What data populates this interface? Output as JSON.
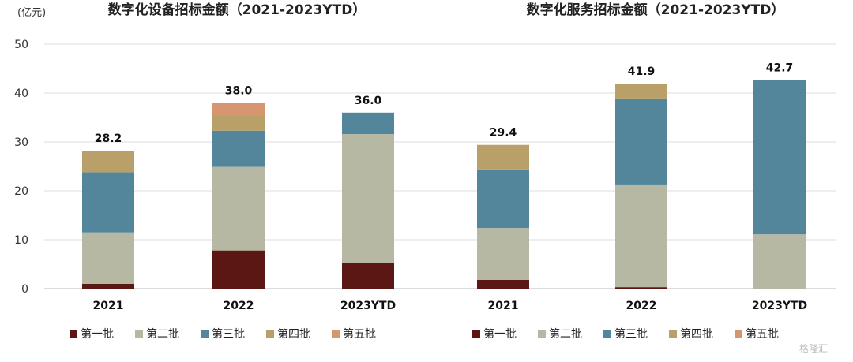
{
  "unit_label": "(亿元)",
  "watermark": "格隆汇",
  "colors": {
    "第一批": "#5a1713",
    "第二批": "#b7b8a4",
    "第三批": "#53869a",
    "第四批": "#b9a068",
    "第五批": "#d59670"
  },
  "chart_data": [
    {
      "type": "bar",
      "stacked": true,
      "title": "数字化设备招标金额（2021-2023YTD）",
      "ylim": [
        0,
        50
      ],
      "yticks": [
        0,
        10,
        20,
        30,
        40,
        50
      ],
      "categories": [
        "2021",
        "2022",
        "2023YTD"
      ],
      "totals": [
        "28.2",
        "38.0",
        "36.0"
      ],
      "series": [
        {
          "name": "第一批",
          "values": [
            1.0,
            7.8,
            5.2
          ]
        },
        {
          "name": "第二批",
          "values": [
            10.5,
            17.1,
            26.4
          ]
        },
        {
          "name": "第三批",
          "values": [
            12.3,
            7.4,
            4.4
          ]
        },
        {
          "name": "第四批",
          "values": [
            4.4,
            3.1,
            0
          ]
        },
        {
          "name": "第五批",
          "values": [
            0,
            2.6,
            0
          ]
        }
      ],
      "legend_position": "bottom"
    },
    {
      "type": "bar",
      "stacked": true,
      "title": "数字化服务招标金额（2021-2023YTD）",
      "ylim": [
        0,
        50
      ],
      "categories": [
        "2021",
        "2022",
        "2023YTD"
      ],
      "totals": [
        "29.4",
        "41.9",
        "42.7"
      ],
      "series": [
        {
          "name": "第一批",
          "values": [
            1.8,
            0.3,
            0
          ]
        },
        {
          "name": "第二批",
          "values": [
            10.6,
            21.0,
            11.1
          ]
        },
        {
          "name": "第三批",
          "values": [
            12.0,
            17.6,
            31.6
          ]
        },
        {
          "name": "第四批",
          "values": [
            5.0,
            3.0,
            0
          ]
        },
        {
          "name": "第五批",
          "values": [
            0,
            0,
            0
          ]
        }
      ],
      "legend_position": "bottom"
    }
  ]
}
